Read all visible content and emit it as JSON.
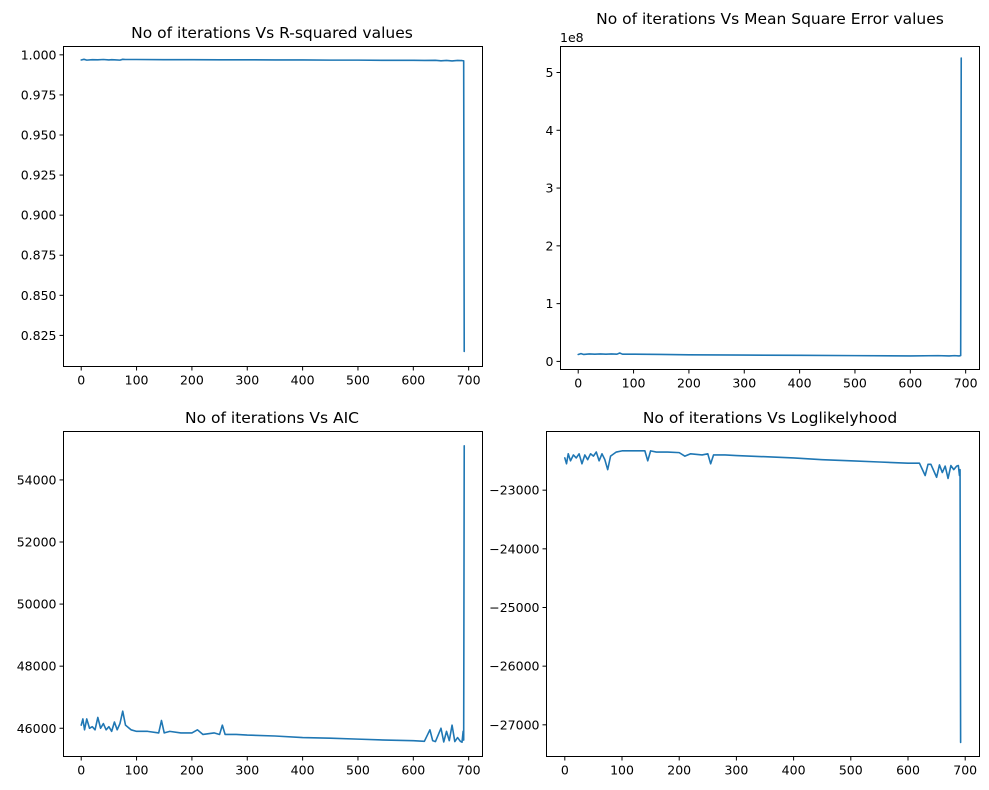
{
  "colors": {
    "series": "#1f77b4"
  },
  "chart_data": [
    {
      "type": "line",
      "title": "No of iterations Vs R-squared values",
      "xlabel": "",
      "ylabel": "",
      "xlim": [
        -32,
        725
      ],
      "ylim": [
        0.8056,
        1.0052
      ],
      "xticks": [
        0,
        100,
        200,
        300,
        400,
        500,
        600,
        700
      ],
      "xtick_labels": [
        "0",
        "100",
        "200",
        "300",
        "400",
        "500",
        "600",
        "700"
      ],
      "yticks": [
        0.825,
        0.85,
        0.875,
        0.9,
        0.925,
        0.95,
        0.975,
        1.0
      ],
      "ytick_labels": [
        "0.825",
        "0.850",
        "0.875",
        "0.900",
        "0.925",
        "0.950",
        "0.975",
        "1.000"
      ],
      "offset_text": "",
      "series": [
        {
          "name": "R-squared",
          "x": [
            0,
            5,
            10,
            20,
            30,
            40,
            50,
            55,
            60,
            70,
            75,
            80,
            100,
            150,
            200,
            250,
            300,
            350,
            400,
            450,
            500,
            550,
            600,
            620,
            640,
            650,
            660,
            670,
            680,
            685,
            688,
            690,
            691,
            692
          ],
          "y": [
            0.9968,
            0.9972,
            0.9967,
            0.997,
            0.9969,
            0.9971,
            0.9968,
            0.997,
            0.9969,
            0.9967,
            0.9972,
            0.9971,
            0.9971,
            0.997,
            0.997,
            0.9969,
            0.9969,
            0.9968,
            0.9968,
            0.9967,
            0.9967,
            0.9966,
            0.9966,
            0.9965,
            0.9966,
            0.9963,
            0.9965,
            0.9962,
            0.9965,
            0.9964,
            0.9964,
            0.9963,
            0.9963,
            0.815
          ]
        }
      ]
    },
    {
      "type": "line",
      "title": "No of iterations Vs Mean Square Error values",
      "xlabel": "",
      "ylabel": "",
      "xlim": [
        -32,
        725
      ],
      "ylim": [
        -14000000.0,
        545000000.0
      ],
      "xticks": [
        0,
        100,
        200,
        300,
        400,
        500,
        600,
        700
      ],
      "xtick_labels": [
        "0",
        "100",
        "200",
        "300",
        "400",
        "500",
        "600",
        "700"
      ],
      "yticks": [
        0,
        100000000.0,
        200000000.0,
        300000000.0,
        400000000.0,
        500000000.0
      ],
      "ytick_labels": [
        "0",
        "1",
        "2",
        "3",
        "4",
        "5"
      ],
      "offset_text": "1e8",
      "series": [
        {
          "name": "Mean Square Error",
          "x": [
            0,
            5,
            10,
            20,
            30,
            40,
            50,
            60,
            70,
            75,
            80,
            100,
            150,
            200,
            300,
            400,
            500,
            600,
            650,
            670,
            680,
            688,
            691,
            692
          ],
          "y": [
            12000000.0,
            13500000.0,
            12000000.0,
            13000000.0,
            12500000.0,
            13000000.0,
            12500000.0,
            13000000.0,
            12500000.0,
            14500000.0,
            12500000.0,
            12500000.0,
            12000000.0,
            11500000.0,
            11000000.0,
            10500000.0,
            10000000.0,
            9500000.0,
            10000000.0,
            9500000.0,
            10000000.0,
            9500000.0,
            10000000.0,
            525000000.0
          ]
        }
      ]
    },
    {
      "type": "line",
      "title": "No of iterations Vs AIC",
      "xlabel": "",
      "ylabel": "",
      "xlim": [
        -32,
        725
      ],
      "ylim": [
        45090,
        55560
      ],
      "xticks": [
        0,
        100,
        200,
        300,
        400,
        500,
        600,
        700
      ],
      "xtick_labels": [
        "0",
        "100",
        "200",
        "300",
        "400",
        "500",
        "600",
        "700"
      ],
      "yticks": [
        46000,
        48000,
        50000,
        52000,
        54000
      ],
      "ytick_labels": [
        "46000",
        "48000",
        "50000",
        "52000",
        "54000"
      ],
      "offset_text": "",
      "series": [
        {
          "name": "AIC",
          "x": [
            0,
            3,
            6,
            10,
            15,
            20,
            25,
            30,
            35,
            40,
            45,
            50,
            55,
            60,
            65,
            70,
            75,
            80,
            90,
            100,
            120,
            140,
            145,
            150,
            160,
            180,
            200,
            210,
            220,
            240,
            250,
            255,
            260,
            280,
            300,
            350,
            400,
            450,
            500,
            550,
            600,
            620,
            630,
            635,
            640,
            650,
            655,
            660,
            665,
            670,
            675,
            680,
            685,
            688,
            690,
            691,
            692
          ],
          "y": [
            46100,
            46300,
            45950,
            46300,
            46000,
            46050,
            45950,
            46350,
            46000,
            46150,
            45950,
            46050,
            45900,
            46200,
            45950,
            46150,
            46550,
            46100,
            45950,
            45900,
            45900,
            45850,
            46250,
            45850,
            45900,
            45850,
            45850,
            45950,
            45800,
            45850,
            45800,
            46100,
            45800,
            45800,
            45780,
            45750,
            45700,
            45680,
            45650,
            45620,
            45600,
            45580,
            45950,
            45600,
            45570,
            46000,
            45560,
            45900,
            45600,
            46100,
            45570,
            45700,
            45580,
            45550,
            45900,
            45620,
            55100
          ]
        }
      ]
    },
    {
      "type": "line",
      "title": "No of iterations Vs Loglikelyhood",
      "xlabel": "",
      "ylabel": "",
      "xlim": [
        -32,
        725
      ],
      "ylim": [
        -27540,
        -22000
      ],
      "xticks": [
        0,
        100,
        200,
        300,
        400,
        500,
        600,
        700
      ],
      "xtick_labels": [
        "0",
        "100",
        "200",
        "300",
        "400",
        "500",
        "600",
        "700"
      ],
      "yticks": [
        -27000,
        -26000,
        -25000,
        -24000,
        -23000
      ],
      "ytick_labels": [
        "−27000",
        "−26000",
        "−25000",
        "−24000",
        "−23000"
      ],
      "offset_text": "",
      "series": [
        {
          "name": "Loglikelyhood",
          "x": [
            0,
            3,
            6,
            10,
            15,
            20,
            25,
            30,
            35,
            40,
            45,
            50,
            55,
            60,
            65,
            70,
            75,
            80,
            90,
            100,
            120,
            140,
            145,
            150,
            160,
            180,
            200,
            210,
            220,
            240,
            250,
            255,
            260,
            280,
            300,
            350,
            400,
            450,
            500,
            550,
            600,
            620,
            630,
            635,
            640,
            650,
            655,
            660,
            665,
            670,
            675,
            680,
            685,
            688,
            690,
            691,
            692
          ],
          "y": [
            -22450,
            -22550,
            -22380,
            -22500,
            -22400,
            -22450,
            -22380,
            -22550,
            -22400,
            -22480,
            -22380,
            -22420,
            -22350,
            -22500,
            -22380,
            -22480,
            -22650,
            -22420,
            -22350,
            -22330,
            -22330,
            -22330,
            -22500,
            -22330,
            -22350,
            -22350,
            -22360,
            -22420,
            -22380,
            -22400,
            -22380,
            -22550,
            -22400,
            -22400,
            -22410,
            -22430,
            -22450,
            -22480,
            -22500,
            -22520,
            -22540,
            -22540,
            -22750,
            -22560,
            -22560,
            -22780,
            -22570,
            -22700,
            -22590,
            -22800,
            -22580,
            -22650,
            -22590,
            -22580,
            -22750,
            -22650,
            -27300
          ]
        }
      ]
    }
  ]
}
